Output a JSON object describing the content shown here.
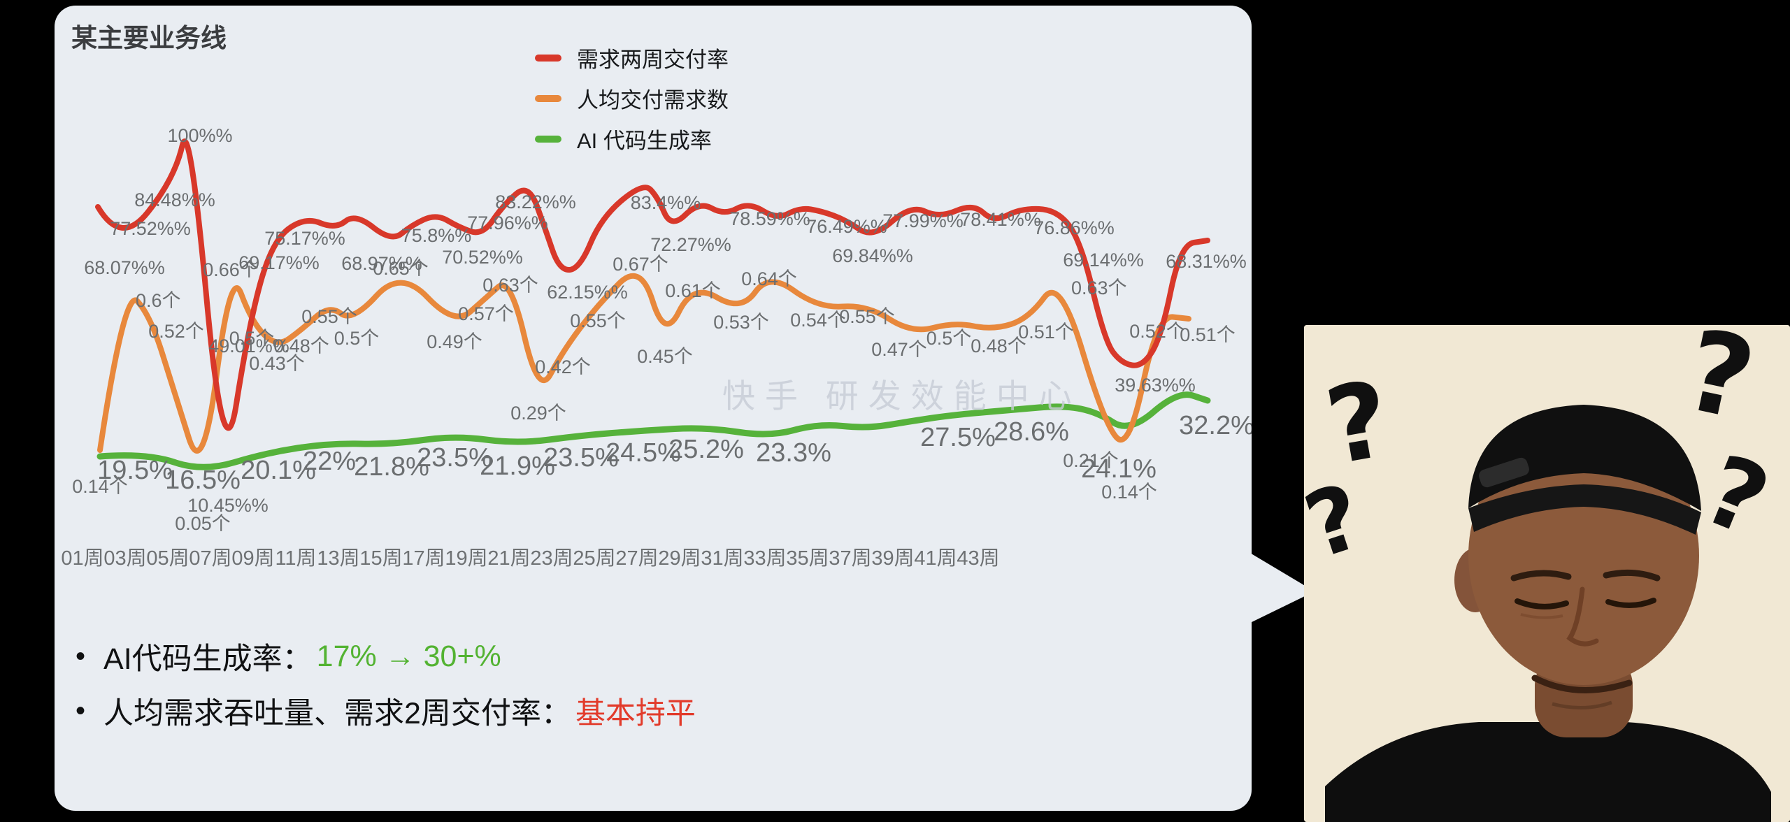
{
  "card": {
    "title": "某主要业务线",
    "background": "#e9edf2"
  },
  "legend": [
    {
      "label": "需求两周交付率",
      "color": "#d8382a"
    },
    {
      "label": "人均交付需求数",
      "color": "#e8883c"
    },
    {
      "label": "AI 代码生成率",
      "color": "#56b23b"
    }
  ],
  "watermark": "快手 研发效能中心",
  "chart_data": {
    "type": "line",
    "title": "某主要业务线",
    "legend_position": "top",
    "x_ticks": [
      "01周",
      "03周",
      "05周",
      "07周",
      "09周",
      "11周",
      "13周",
      "15周",
      "17周",
      "19周",
      "21周",
      "23周",
      "25周",
      "27周",
      "29周",
      "31周",
      "33周",
      "35周",
      "37周",
      "39周",
      "41周",
      "43周"
    ],
    "series": [
      {
        "name": "需求两周交付率",
        "unit": "%",
        "color": "#d8382a",
        "points": [
          {
            "x": 0.006,
            "v": 77.52,
            "l": "77.52%%",
            "dx": 75
          },
          {
            "x": 0.027,
            "v": 68.07,
            "l": "68.07%%",
            "dx": 5
          },
          {
            "x": 0.075,
            "v": 84.48,
            "l": "84.48%%"
          },
          {
            "x": 0.088,
            "v": 100,
            "l": "100%%",
            "dx": 15
          },
          {
            "x": 0.119,
            "v": 10.45,
            "l": "10.45%%",
            "dx": 6
          },
          {
            "x": 0.141,
            "v": 49.01,
            "l": "49.01%%"
          },
          {
            "x": 0.162,
            "v": 69.17,
            "l": "69.17%%",
            "dx": 10
          },
          {
            "x": 0.191,
            "v": 75.17,
            "l": "75.17%%"
          },
          {
            "x": 0.219,
            "v": 72.0
          },
          {
            "x": 0.236,
            "v": 76.0
          },
          {
            "x": 0.269,
            "v": 68.97,
            "l": "68.97%%",
            "dx": -14
          },
          {
            "x": 0.287,
            "v": 73.0
          },
          {
            "x": 0.309,
            "v": 75.8,
            "l": "75.8%%"
          },
          {
            "x": 0.329,
            "v": 72.5
          },
          {
            "x": 0.35,
            "v": 70.52,
            "l": "70.52%%"
          },
          {
            "x": 0.369,
            "v": 77.96,
            "l": "77.96%%",
            "dx": 6,
            "dy": -5
          },
          {
            "x": 0.391,
            "v": 83.22,
            "l": "83.22%%",
            "dx": 10,
            "dy": -4
          },
          {
            "x": 0.406,
            "v": 72.0
          },
          {
            "x": 0.419,
            "v": 62.15,
            "l": "62.15%%",
            "dx": 40
          },
          {
            "x": 0.437,
            "v": 62.5
          },
          {
            "x": 0.456,
            "v": 75.0
          },
          {
            "x": 0.494,
            "v": 83.4,
            "l": "83.4%%",
            "dx": 32,
            "dy": -2
          },
          {
            "x": 0.506,
            "v": 80.0
          },
          {
            "x": 0.519,
            "v": 72.27,
            "l": "72.27%%",
            "dx": 28,
            "dy": -8
          },
          {
            "x": 0.544,
            "v": 78.8
          },
          {
            "x": 0.566,
            "v": 75.5
          },
          {
            "x": 0.588,
            "v": 78.59,
            "l": "78.59%%",
            "dx": 30,
            "dy": -7
          },
          {
            "x": 0.613,
            "v": 74.5
          },
          {
            "x": 0.634,
            "v": 77.3
          },
          {
            "x": 0.653,
            "v": 76.49,
            "l": "76.49%%",
            "dx": 36,
            "dy": -9
          },
          {
            "x": 0.675,
            "v": 74.3
          },
          {
            "x": 0.699,
            "v": 69.84,
            "l": "69.84%%",
            "dy": -6
          },
          {
            "x": 0.733,
            "v": 77.99,
            "l": "77.99%%",
            "dx": 17,
            "dy": -8
          },
          {
            "x": 0.758,
            "v": 74.8
          },
          {
            "x": 0.789,
            "v": 78.41,
            "l": "78.41%%",
            "dx": 39,
            "dy": -8
          },
          {
            "x": 0.807,
            "v": 73.8
          },
          {
            "x": 0.831,
            "v": 77.2
          },
          {
            "x": 0.864,
            "v": 76.86,
            "l": "76.86%%",
            "dx": 24,
            "dy": -5
          },
          {
            "x": 0.885,
            "v": 69.14,
            "l": "69.14%%",
            "dx": 32,
            "dy": -4
          },
          {
            "x": 0.906,
            "v": 45.0
          },
          {
            "x": 0.921,
            "v": 39.63,
            "l": "39.63%%",
            "dx": 48
          },
          {
            "x": 0.94,
            "v": 38.8
          },
          {
            "x": 0.957,
            "v": 46.0
          },
          {
            "x": 0.974,
            "v": 68.31,
            "l": "68.31%%",
            "dx": 37,
            "dy": -7
          },
          {
            "x": 0.998,
            "v": 69.4
          }
        ]
      },
      {
        "name": "人均交付需求数",
        "unit": "个",
        "color": "#e8883c",
        "points": [
          {
            "x": 0.008,
            "v": 0.14,
            "l": "0.14个",
            "dy": 29
          },
          {
            "x": 0.03,
            "v": 0.6,
            "l": "0.6个",
            "s": "r",
            "dy": 16
          },
          {
            "x": 0.053,
            "v": 0.52,
            "l": "0.52个",
            "dx": 37
          },
          {
            "x": 0.075,
            "v": 0.3
          },
          {
            "x": 0.1,
            "v": 0.05,
            "l": "0.05个",
            "dy": 36
          },
          {
            "x": 0.125,
            "v": 0.66,
            "l": "0.66个",
            "dy": -17
          },
          {
            "x": 0.144,
            "v": 0.5,
            "l": "0.5个"
          },
          {
            "x": 0.166,
            "v": 0.43,
            "l": "0.43个"
          },
          {
            "x": 0.188,
            "v": 0.48,
            "l": "0.48个"
          },
          {
            "x": 0.213,
            "v": 0.55,
            "l": "0.55个",
            "dy": -6
          },
          {
            "x": 0.234,
            "v": 0.5,
            "l": "0.5个",
            "dx": 6
          },
          {
            "x": 0.277,
            "v": 0.65,
            "l": "0.65个",
            "dy": -24
          },
          {
            "x": 0.325,
            "v": 0.49,
            "l": "0.49个"
          },
          {
            "x": 0.353,
            "v": 0.57,
            "l": "0.57个"
          },
          {
            "x": 0.375,
            "v": 0.63,
            "l": "0.63个",
            "dy": -10
          },
          {
            "x": 0.4,
            "v": 0.29,
            "l": "0.29个"
          },
          {
            "x": 0.422,
            "v": 0.42,
            "l": "0.42个"
          },
          {
            "x": 0.453,
            "v": 0.55,
            "l": "0.55个"
          },
          {
            "x": 0.491,
            "v": 0.67,
            "l": "0.67个",
            "dy": -20
          },
          {
            "x": 0.513,
            "v": 0.45,
            "l": "0.45个"
          },
          {
            "x": 0.538,
            "v": 0.61,
            "l": "0.61个",
            "dy": -12
          },
          {
            "x": 0.581,
            "v": 0.53,
            "l": "0.53个",
            "dy": -8
          },
          {
            "x": 0.606,
            "v": 0.64,
            "l": "0.64个",
            "dy": -14
          },
          {
            "x": 0.65,
            "v": 0.54,
            "l": "0.54个",
            "dy": -6
          },
          {
            "x": 0.694,
            "v": 0.55,
            "l": "0.55个",
            "dy": -6
          },
          {
            "x": 0.734,
            "v": 0.47,
            "l": "0.47个",
            "dx": -18
          },
          {
            "x": 0.772,
            "v": 0.5,
            "l": "0.5个",
            "dx": -8
          },
          {
            "x": 0.806,
            "v": 0.48,
            "l": "0.48个",
            "dx": 8
          },
          {
            "x": 0.838,
            "v": 0.51,
            "l": "0.51个",
            "dx": 25,
            "dy": -4
          },
          {
            "x": 0.866,
            "v": 0.63,
            "l": "0.63个",
            "s": "r",
            "dy": 14
          },
          {
            "x": 0.906,
            "v": 0.21,
            "l": "0.21个",
            "dx": -20,
            "dy": 27
          },
          {
            "x": 0.928,
            "v": 0.14,
            "l": "0.14个",
            "dy": 37
          },
          {
            "x": 0.953,
            "v": 0.52,
            "l": "0.52个"
          },
          {
            "x": 0.981,
            "v": 0.51,
            "l": "0.51个",
            "dx": 27
          }
        ]
      },
      {
        "name": "AI 代码生成率",
        "unit": "%",
        "color": "#56b23b",
        "points": [
          {
            "x": 0.008,
            "v": 19.5,
            "l": "19.5%",
            "dx": 50,
            "dy": -12
          },
          {
            "x": 0.05,
            "v": 20.2
          },
          {
            "x": 0.1,
            "v": 16.5,
            "l": "16.5%",
            "dy": -20
          },
          {
            "x": 0.156,
            "v": 20.1,
            "l": "20.1%",
            "dx": 18,
            "dy": -7
          },
          {
            "x": 0.213,
            "v": 22.0,
            "l": "22%",
            "dy": -6
          },
          {
            "x": 0.269,
            "v": 21.8,
            "l": "21.8%"
          },
          {
            "x": 0.325,
            "v": 23.5,
            "l": "23.5%"
          },
          {
            "x": 0.381,
            "v": 21.9,
            "l": "21.9%"
          },
          {
            "x": 0.438,
            "v": 23.5,
            "l": "23.5%"
          },
          {
            "x": 0.494,
            "v": 24.5,
            "l": "24.5%"
          },
          {
            "x": 0.55,
            "v": 25.2,
            "l": "25.2%"
          },
          {
            "x": 0.606,
            "v": 23.3,
            "l": "23.3%",
            "dx": 35,
            "dy": -9
          },
          {
            "x": 0.65,
            "v": 25.8
          },
          {
            "x": 0.694,
            "v": 24.9
          },
          {
            "x": 0.731,
            "v": 26.3
          },
          {
            "x": 0.769,
            "v": 27.5,
            "l": "27.5%",
            "dx": 10
          },
          {
            "x": 0.825,
            "v": 28.6,
            "l": "28.6%",
            "dx": 25
          },
          {
            "x": 0.87,
            "v": 29.3
          },
          {
            "x": 0.9,
            "v": 28.0
          },
          {
            "x": 0.928,
            "v": 24.1,
            "l": "24.1%",
            "dx": -15,
            "dy": 20
          },
          {
            "x": 0.972,
            "v": 32.2,
            "l": "32.2%",
            "dx": 55,
            "dy": 18
          },
          {
            "x": 0.998,
            "v": 30.3
          }
        ]
      }
    ]
  },
  "bullets": [
    {
      "prefix": "AI代码生成率：",
      "highlight": "17% → 30+%",
      "color": "#53b332"
    },
    {
      "prefix": "人均需求吞吐量、需求2周交付率：",
      "highlight": "基本持平",
      "color": "#e23b2b"
    }
  ],
  "meme": {
    "question_marks": [
      "?",
      "?",
      "?",
      "?"
    ]
  }
}
